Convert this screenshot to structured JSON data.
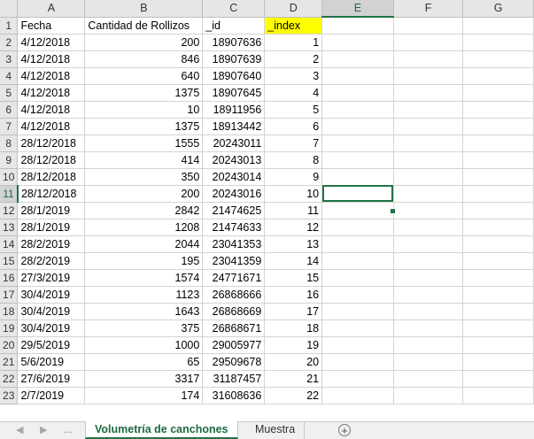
{
  "columns": [
    "A",
    "B",
    "C",
    "D",
    "E",
    "F",
    "G"
  ],
  "headers": {
    "fecha": "Fecha",
    "cantidad": "Cantidad de Rollizos",
    "id": "_id",
    "index": "_index"
  },
  "rows": [
    {
      "row": "2",
      "fecha": "4/12/2018",
      "cantidad": "200",
      "id": "18907636",
      "index": "1"
    },
    {
      "row": "3",
      "fecha": "4/12/2018",
      "cantidad": "846",
      "id": "18907639",
      "index": "2"
    },
    {
      "row": "4",
      "fecha": "4/12/2018",
      "cantidad": "640",
      "id": "18907640",
      "index": "3"
    },
    {
      "row": "5",
      "fecha": "4/12/2018",
      "cantidad": "1375",
      "id": "18907645",
      "index": "4"
    },
    {
      "row": "6",
      "fecha": "4/12/2018",
      "cantidad": "10",
      "id": "18911956",
      "index": "5"
    },
    {
      "row": "7",
      "fecha": "4/12/2018",
      "cantidad": "1375",
      "id": "18913442",
      "index": "6"
    },
    {
      "row": "8",
      "fecha": "28/12/2018",
      "cantidad": "1555",
      "id": "20243011",
      "index": "7"
    },
    {
      "row": "9",
      "fecha": "28/12/2018",
      "cantidad": "414",
      "id": "20243013",
      "index": "8"
    },
    {
      "row": "10",
      "fecha": "28/12/2018",
      "cantidad": "350",
      "id": "20243014",
      "index": "9"
    },
    {
      "row": "11",
      "fecha": "28/12/2018",
      "cantidad": "200",
      "id": "20243016",
      "index": "10"
    },
    {
      "row": "12",
      "fecha": "28/1/2019",
      "cantidad": "2842",
      "id": "21474625",
      "index": "11"
    },
    {
      "row": "13",
      "fecha": "28/1/2019",
      "cantidad": "1208",
      "id": "21474633",
      "index": "12"
    },
    {
      "row": "14",
      "fecha": "28/2/2019",
      "cantidad": "2044",
      "id": "23041353",
      "index": "13"
    },
    {
      "row": "15",
      "fecha": "28/2/2019",
      "cantidad": "195",
      "id": "23041359",
      "index": "14"
    },
    {
      "row": "16",
      "fecha": "27/3/2019",
      "cantidad": "1574",
      "id": "24771671",
      "index": "15"
    },
    {
      "row": "17",
      "fecha": "30/4/2019",
      "cantidad": "1123",
      "id": "26868666",
      "index": "16"
    },
    {
      "row": "18",
      "fecha": "30/4/2019",
      "cantidad": "1643",
      "id": "26868669",
      "index": "17"
    },
    {
      "row": "19",
      "fecha": "30/4/2019",
      "cantidad": "375",
      "id": "26868671",
      "index": "18"
    },
    {
      "row": "20",
      "fecha": "29/5/2019",
      "cantidad": "1000",
      "id": "29005977",
      "index": "19"
    },
    {
      "row": "21",
      "fecha": "5/6/2019",
      "cantidad": "65",
      "id": "29509678",
      "index": "20"
    },
    {
      "row": "22",
      "fecha": "27/6/2019",
      "cantidad": "3317",
      "id": "31187457",
      "index": "21"
    },
    {
      "row": "23",
      "fecha": "2/7/2019",
      "cantidad": "174",
      "id": "31608636",
      "index": "22"
    }
  ],
  "selection": {
    "column": "E",
    "row": "11"
  },
  "sheet_tabs": {
    "active": "Volumetría de canchones",
    "other": "Muestra",
    "more": "...",
    "add": "+"
  },
  "colors": {
    "excel_green": "#217346",
    "highlight_yellow": "#ffff00"
  }
}
